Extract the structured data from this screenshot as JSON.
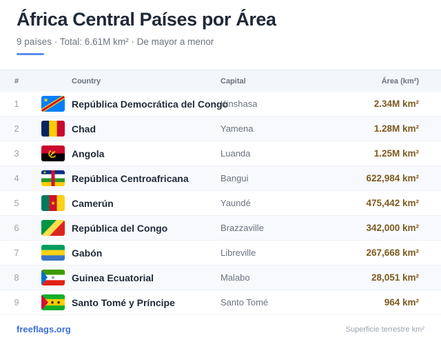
{
  "header": {
    "title": "África Central Países por Área",
    "subtitle": "9 países · Total: 6.61M km² · De mayor a menor"
  },
  "table": {
    "columns": {
      "rank": "#",
      "country": "Country",
      "capital": "Capital",
      "area": "Área (km²)"
    },
    "rows": [
      {
        "rank": "1",
        "country": "República Democrática del Congo",
        "capital": "Kinshasa",
        "area": "2.34M km²",
        "flag": "flag-drc-icon"
      },
      {
        "rank": "2",
        "country": "Chad",
        "capital": "Yamena",
        "area": "1.28M km²",
        "flag": "flag-chad-icon"
      },
      {
        "rank": "3",
        "country": "Angola",
        "capital": "Luanda",
        "area": "1.25M km²",
        "flag": "flag-angola-icon"
      },
      {
        "rank": "4",
        "country": "República Centroafricana",
        "capital": "Bangui",
        "area": "622,984 km²",
        "flag": "flag-car-icon"
      },
      {
        "rank": "5",
        "country": "Camerún",
        "capital": "Yaundé",
        "area": "475,442 km²",
        "flag": "flag-cameroon-icon"
      },
      {
        "rank": "6",
        "country": "República del Congo",
        "capital": "Brazzaville",
        "area": "342,000 km²",
        "flag": "flag-congo-icon"
      },
      {
        "rank": "7",
        "country": "Gabón",
        "capital": "Libreville",
        "area": "267,668 km²",
        "flag": "flag-gabon-icon"
      },
      {
        "rank": "8",
        "country": "Guinea Ecuatorial",
        "capital": "Malabo",
        "area": "28,051 km²",
        "flag": "flag-equatorial-guinea-icon"
      },
      {
        "rank": "9",
        "country": "Santo Tomé y Príncipe",
        "capital": "Santo Tomé",
        "area": "964 km²",
        "flag": "flag-sao-tome-icon"
      }
    ]
  },
  "footer": {
    "brand": "freeflags.org",
    "note": "Superficie terrestre km²"
  },
  "colors": {
    "accent": "#5b8def",
    "area_text": "#7c5a1e",
    "brand": "#3b6fd8"
  }
}
